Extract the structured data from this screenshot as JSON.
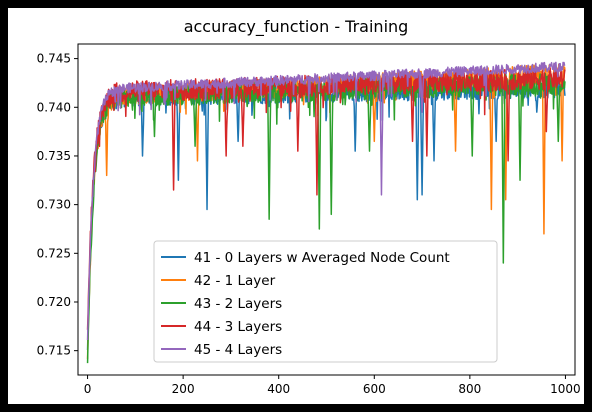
{
  "chart_data": {
    "type": "line",
    "title": "accuracy_function - Training",
    "xlabel": "",
    "ylabel": "",
    "xlim": [
      -20,
      1020
    ],
    "ylim": [
      0.7125,
      0.7465
    ],
    "x_ticks": [
      0,
      200,
      400,
      600,
      800,
      1000
    ],
    "x_tick_labels": [
      "0",
      "200",
      "400",
      "600",
      "800",
      "1000"
    ],
    "y_ticks": [
      0.715,
      0.72,
      0.725,
      0.73,
      0.735,
      0.74,
      0.745
    ],
    "y_tick_labels": [
      "0.715",
      "0.720",
      "0.725",
      "0.730",
      "0.735",
      "0.740",
      "0.745"
    ],
    "grid": false,
    "legend_position": "lower-center",
    "n_points": 1000,
    "series": [
      {
        "name": "41 - 0 Layers w Averaged Node Count",
        "color": "#1f77b4",
        "start": 0.715,
        "plateau_start": 0.741,
        "plateau_end": 0.742,
        "noise": 0.001,
        "dips": [
          [
            115,
            0.735
          ],
          [
            190,
            0.7325
          ],
          [
            250,
            0.7295
          ],
          [
            315,
            0.7365
          ],
          [
            560,
            0.7355
          ],
          [
            690,
            0.7305
          ],
          [
            700,
            0.731
          ],
          [
            725,
            0.7345
          ],
          [
            855,
            0.7365
          ],
          [
            940,
            0.7395
          ]
        ]
      },
      {
        "name": "42 - 1 Layer",
        "color": "#ff7f0e",
        "start": 0.714,
        "plateau_start": 0.741,
        "plateau_end": 0.7435,
        "noise": 0.001,
        "dips": [
          [
            40,
            0.733
          ],
          [
            230,
            0.7345
          ],
          [
            600,
            0.7365
          ],
          [
            770,
            0.7355
          ],
          [
            845,
            0.7295
          ],
          [
            875,
            0.7305
          ],
          [
            955,
            0.727
          ],
          [
            993,
            0.7345
          ]
        ]
      },
      {
        "name": "43 - 2 Layers",
        "color": "#2ca02c",
        "start": 0.7135,
        "plateau_start": 0.741,
        "plateau_end": 0.7425,
        "noise": 0.0011,
        "dips": [
          [
            140,
            0.737
          ],
          [
            225,
            0.736
          ],
          [
            380,
            0.7285
          ],
          [
            485,
            0.7275
          ],
          [
            510,
            0.729
          ],
          [
            590,
            0.7355
          ],
          [
            805,
            0.735
          ],
          [
            870,
            0.724
          ],
          [
            905,
            0.7325
          ],
          [
            985,
            0.7365
          ]
        ]
      },
      {
        "name": "44 - 3 Layers",
        "color": "#d62728",
        "start": 0.717,
        "plateau_start": 0.7415,
        "plateau_end": 0.743,
        "noise": 0.0011,
        "dips": [
          [
            180,
            0.7315
          ],
          [
            290,
            0.735
          ],
          [
            325,
            0.736
          ],
          [
            440,
            0.7355
          ],
          [
            480,
            0.731
          ],
          [
            680,
            0.7365
          ],
          [
            710,
            0.735
          ],
          [
            880,
            0.7345
          ],
          [
            960,
            0.7375
          ]
        ]
      },
      {
        "name": "45 - 4 Layers",
        "color": "#9467bd",
        "start": 0.716,
        "plateau_start": 0.7418,
        "plateau_end": 0.7442,
        "noise": 0.0005,
        "dips": [
          [
            615,
            0.731
          ],
          [
            700,
            0.7395
          ]
        ]
      }
    ]
  }
}
